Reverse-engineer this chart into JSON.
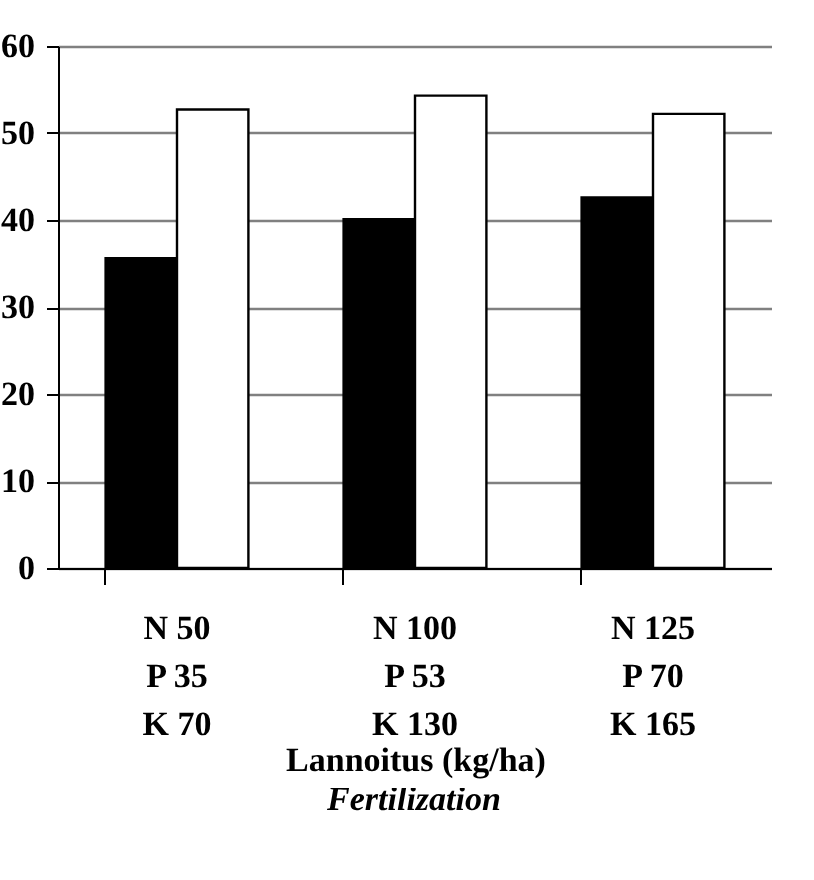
{
  "chart_data": {
    "type": "bar",
    "categories": [
      "N 50\nP 35\nK 70",
      "N 100\nP 53\nK 130",
      "N 125\nP 70\nK 165"
    ],
    "series": [
      {
        "color": "#000000",
        "values": [
          35.6,
          40.1,
          42.6
        ]
      },
      {
        "color": "#ffffff",
        "values": [
          52.7,
          54.3,
          52.2
        ]
      }
    ],
    "xlabel": "Lannoitus (kg/ha)",
    "annotations": [
      "Fertilization"
    ],
    "ylim": [
      0,
      60
    ],
    "yticks": [
      0,
      10,
      20,
      30,
      40,
      50,
      60
    ],
    "grid": "y",
    "legend": false
  }
}
